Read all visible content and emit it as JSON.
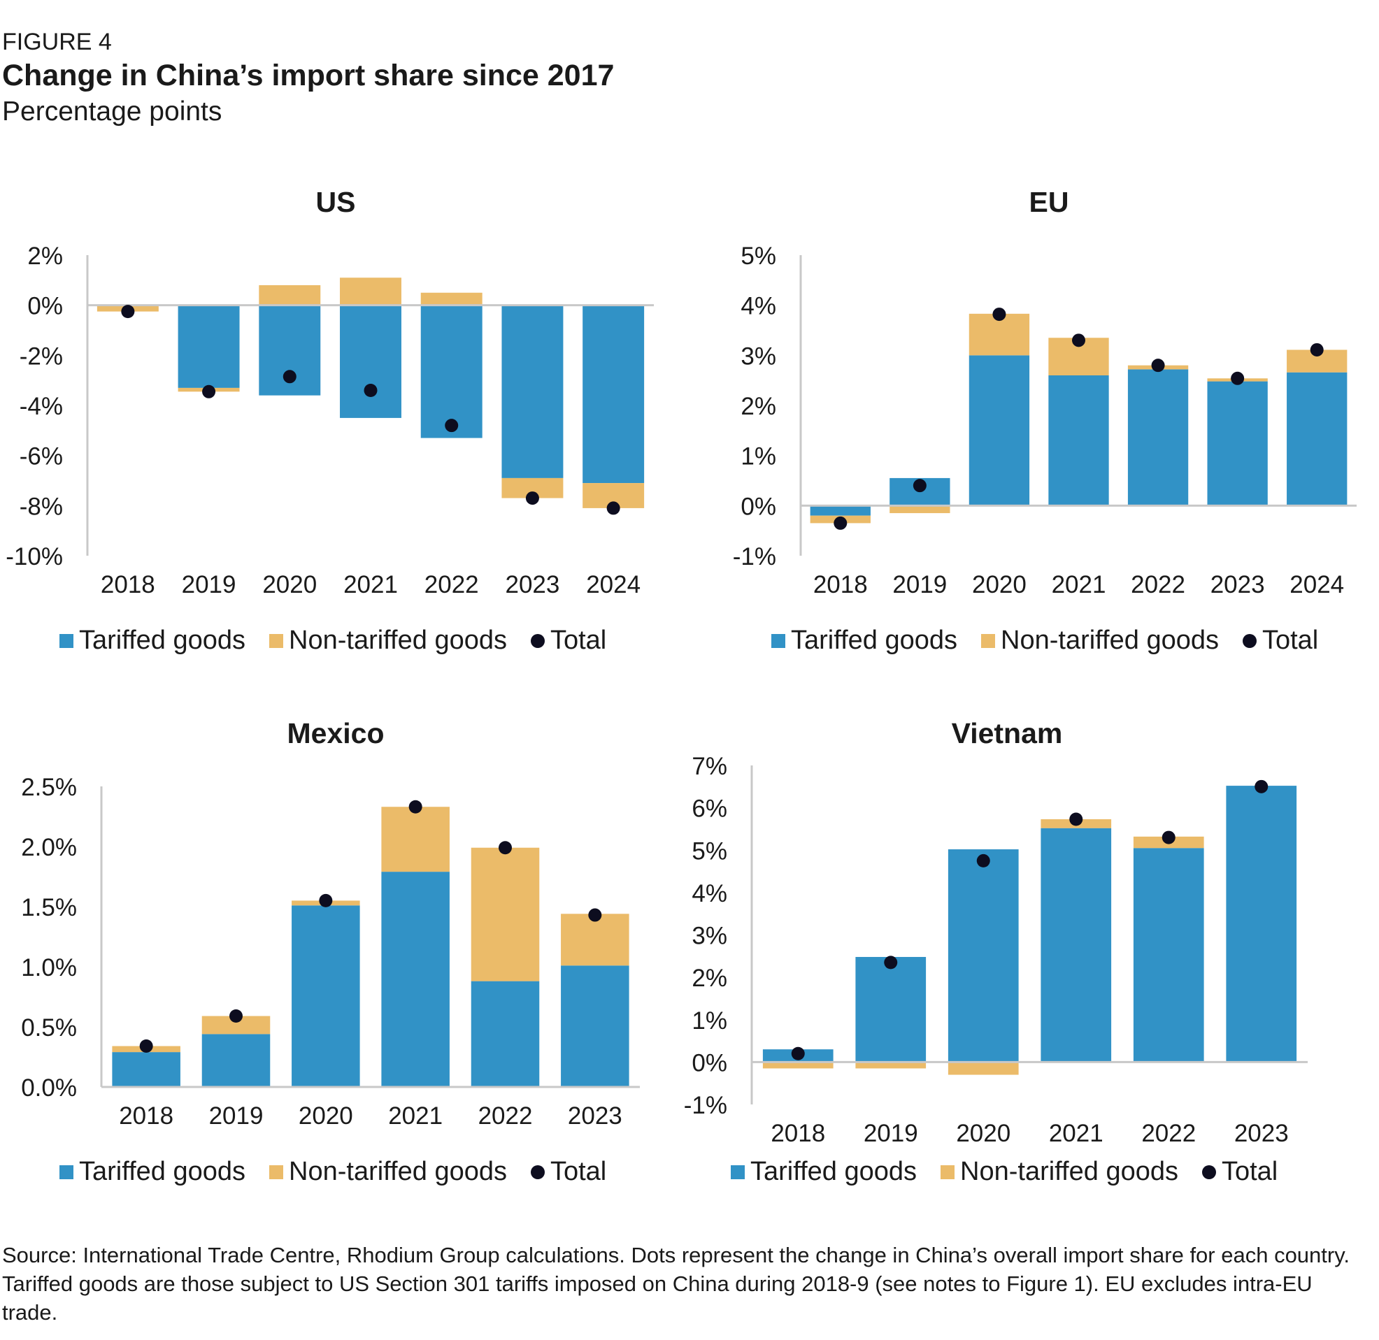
{
  "header": {
    "figure_label": "FIGURE 4",
    "title": "Change in China’s import share since 2017",
    "subtitle": "Percentage points"
  },
  "legend": {
    "tariffed": "Tariffed goods",
    "non_tariffed": "Non-tariffed goods",
    "total": "Total"
  },
  "colors": {
    "tariffed": "#3192c6",
    "non_tariffed": "#ebbb69",
    "total": "#0d0d1f",
    "axis": "#c8c8c8"
  },
  "source": "Source: International Trade Centre, Rhodium Group calculations. Dots represent the change in China’s overall import share for each country. Tariffed goods are those subject to US Section 301 tariffs imposed on China during 2018-9 (see notes to Figure 1). EU excludes intra-EU trade.",
  "chart_data": [
    {
      "type": "bar",
      "stacked": true,
      "title": "US",
      "categories": [
        "2018",
        "2019",
        "2020",
        "2021",
        "2022",
        "2023",
        "2024"
      ],
      "series": [
        {
          "name": "Tariffed goods",
          "values": [
            0.0,
            -3.3,
            -3.6,
            -4.5,
            -5.3,
            -6.9,
            -7.1
          ]
        },
        {
          "name": "Non-tariffed goods",
          "values": [
            -0.25,
            -0.15,
            0.8,
            1.1,
            0.5,
            -0.8,
            -1.0
          ]
        }
      ],
      "totals": [
        -0.25,
        -3.45,
        -2.85,
        -3.4,
        -4.8,
        -7.7,
        -8.1
      ],
      "ylim": [
        -10,
        2
      ],
      "yticks": [
        2,
        0,
        -2,
        -4,
        -6,
        -8,
        -10
      ],
      "ytick_labels": [
        "2%",
        "0%",
        "-2%",
        "-4%",
        "-6%",
        "-8%",
        "-10%"
      ]
    },
    {
      "type": "bar",
      "stacked": true,
      "title": "EU",
      "categories": [
        "2018",
        "2019",
        "2020",
        "2021",
        "2022",
        "2023",
        "2024"
      ],
      "series": [
        {
          "name": "Tariffed goods",
          "values": [
            -0.2,
            0.55,
            3.0,
            2.6,
            2.72,
            2.48,
            2.66
          ]
        },
        {
          "name": "Non-tariffed goods",
          "values": [
            -0.15,
            -0.15,
            0.83,
            0.75,
            0.08,
            0.06,
            0.45
          ]
        }
      ],
      "totals": [
        -0.35,
        0.4,
        3.82,
        3.3,
        2.8,
        2.54,
        3.11
      ],
      "ylim": [
        -1,
        5
      ],
      "yticks": [
        5,
        4,
        3,
        2,
        1,
        0,
        -1
      ],
      "ytick_labels": [
        "5%",
        "4%",
        "3%",
        "2%",
        "1%",
        "0%",
        "-1%"
      ]
    },
    {
      "type": "bar",
      "stacked": true,
      "title": "Mexico",
      "categories": [
        "2018",
        "2019",
        "2020",
        "2021",
        "2022",
        "2023"
      ],
      "series": [
        {
          "name": "Tariffed goods",
          "values": [
            0.29,
            0.44,
            1.51,
            1.79,
            0.88,
            1.01
          ]
        },
        {
          "name": "Non-tariffed goods",
          "values": [
            0.05,
            0.15,
            0.04,
            0.54,
            1.11,
            0.43
          ]
        }
      ],
      "totals": [
        0.34,
        0.59,
        1.55,
        2.33,
        1.99,
        1.43
      ],
      "ylim": [
        0,
        2.5
      ],
      "yticks": [
        2.5,
        2.0,
        1.5,
        1.0,
        0.5,
        0.0
      ],
      "ytick_labels": [
        "2.5%",
        "2.0%",
        "1.5%",
        "1.0%",
        "0.5%",
        "0.0%"
      ]
    },
    {
      "type": "bar",
      "stacked": true,
      "title": "Vietnam",
      "categories": [
        "2018",
        "2019",
        "2020",
        "2021",
        "2022",
        "2023"
      ],
      "series": [
        {
          "name": "Tariffed goods",
          "values": [
            0.3,
            2.48,
            5.02,
            5.52,
            5.05,
            6.52
          ]
        },
        {
          "name": "Non-tariffed goods",
          "values": [
            -0.15,
            -0.15,
            -0.3,
            0.21,
            0.27,
            0.0
          ]
        }
      ],
      "totals": [
        0.2,
        2.35,
        4.75,
        5.73,
        5.3,
        6.5
      ],
      "ylim": [
        -1,
        7
      ],
      "yticks": [
        7,
        6,
        5,
        4,
        3,
        2,
        1,
        0,
        -1
      ],
      "ytick_labels": [
        "7%",
        "6%",
        "5%",
        "4%",
        "3%",
        "2%",
        "1%",
        "0%",
        "-1%"
      ]
    }
  ]
}
